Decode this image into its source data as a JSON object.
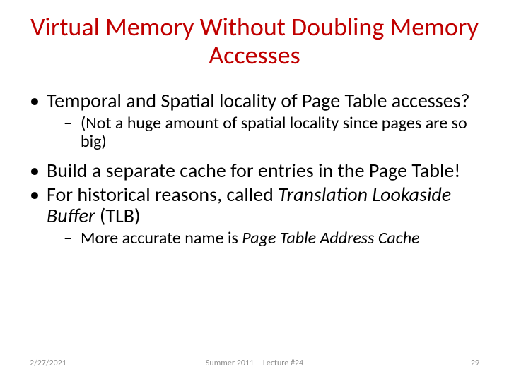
{
  "colors": {
    "title": "#c00000",
    "body": "#000000",
    "footer": "#909090",
    "background": "#ffffff"
  },
  "typography": {
    "title_fontsize": 36,
    "lvl1_fontsize": 28,
    "lvl2_fontsize": 24,
    "footer_fontsize": 12,
    "font_family": "Calibri"
  },
  "title": "Virtual Memory Without Doubling Memory Accesses",
  "bullets": {
    "b1": "Temporal and Spatial locality of Page Table accesses?",
    "b1a": "(Not a huge amount of spatial locality since pages are so big)",
    "b2": "Build a separate cache for entries in the Page Table!",
    "b3_pre": "For historical reasons, called ",
    "b3_em": "Translation Lookaside Buffer",
    "b3_post": " (TLB)",
    "b3a_pre": "More accurate name is ",
    "b3a_em": "Page Table Address Cache"
  },
  "footer": {
    "date": "2/27/2021",
    "center": "Summer 2011 -- Lecture #24",
    "page": "29"
  }
}
